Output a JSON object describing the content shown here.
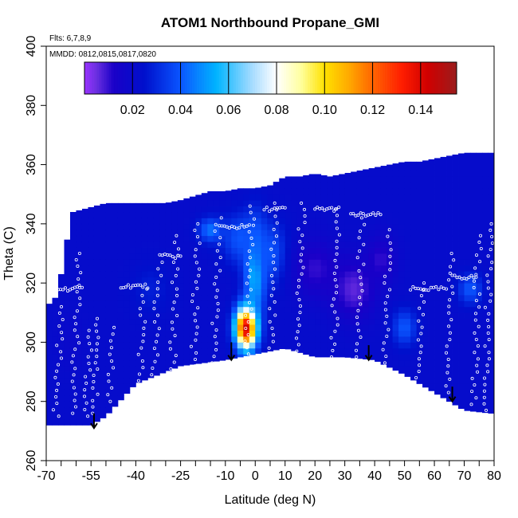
{
  "chart_data": {
    "type": "heatmap",
    "title": "ATOM1 Northbound Propane_GMI",
    "notes": {
      "flights": "Flts: 6,7,8,9",
      "dates": "MMDD: 0812,0815,0817,0820"
    },
    "xlabel": "Latitude (deg N)",
    "ylabel": "Theta (C)",
    "xlim": [
      -70,
      80
    ],
    "ylim": [
      260,
      400
    ],
    "x_ticks": [
      {
        "value": -70,
        "label": "-70"
      },
      {
        "value": -55,
        "label": "-55"
      },
      {
        "value": -40,
        "label": "-40"
      },
      {
        "value": -25,
        "label": "-25"
      },
      {
        "value": -10,
        "label": "-10"
      },
      {
        "value": 0,
        "label": "0"
      },
      {
        "value": 10,
        "label": "10"
      },
      {
        "value": 20,
        "label": "20"
      },
      {
        "value": 30,
        "label": "30"
      },
      {
        "value": 40,
        "label": "40"
      },
      {
        "value": 50,
        "label": "50"
      },
      {
        "value": 60,
        "label": "60"
      },
      {
        "value": 70,
        "label": "70"
      },
      {
        "value": 80,
        "label": "80"
      }
    ],
    "x_minor_ticks": [
      -65,
      -60,
      -50,
      -45,
      -35,
      -30,
      -20,
      -15,
      -5,
      5,
      15,
      25,
      35,
      45,
      55,
      65,
      75
    ],
    "y_ticks": [
      {
        "value": 260,
        "label": "260"
      },
      {
        "value": 280,
        "label": "280"
      },
      {
        "value": 300,
        "label": "300"
      },
      {
        "value": 320,
        "label": "320"
      },
      {
        "value": 340,
        "label": "340"
      },
      {
        "value": 360,
        "label": "360"
      },
      {
        "value": 380,
        "label": "380"
      },
      {
        "value": 400,
        "label": "400"
      }
    ],
    "colorbar": {
      "range": [
        0.0,
        0.155
      ],
      "ticks": [
        {
          "value": 0.02,
          "label": "0.02"
        },
        {
          "value": 0.04,
          "label": "0.04"
        },
        {
          "value": 0.06,
          "label": "0.06"
        },
        {
          "value": 0.08,
          "label": "0.08"
        },
        {
          "value": 0.1,
          "label": "0.10"
        },
        {
          "value": 0.12,
          "label": "0.12"
        },
        {
          "value": 0.14,
          "label": "0.14"
        }
      ],
      "divisions": [
        0.02,
        0.04,
        0.06,
        0.08,
        0.1,
        0.12,
        0.14
      ],
      "palette": [
        {
          "value": 0.0,
          "color": "#9a33ff"
        },
        {
          "value": 0.005,
          "color": "#6a2ee0"
        },
        {
          "value": 0.012,
          "color": "#1a00c8"
        },
        {
          "value": 0.025,
          "color": "#0010cc"
        },
        {
          "value": 0.04,
          "color": "#0a55ff"
        },
        {
          "value": 0.055,
          "color": "#00b4ff"
        },
        {
          "value": 0.07,
          "color": "#a8dcff"
        },
        {
          "value": 0.08,
          "color": "#ffffff"
        },
        {
          "value": 0.09,
          "color": "#ffffa0"
        },
        {
          "value": 0.1,
          "color": "#ffe100"
        },
        {
          "value": 0.11,
          "color": "#ffaa00"
        },
        {
          "value": 0.12,
          "color": "#ff6400"
        },
        {
          "value": 0.132,
          "color": "#ff1e00"
        },
        {
          "value": 0.143,
          "color": "#d00000"
        },
        {
          "value": 0.155,
          "color": "#9a1c1c"
        }
      ]
    },
    "field": {
      "domain_top": [
        [
          -70,
          312
        ],
        [
          -66,
          316
        ],
        [
          -64,
          330
        ],
        [
          -61,
          344
        ],
        [
          -50,
          347
        ],
        [
          -40,
          347
        ],
        [
          -30,
          347
        ],
        [
          -25,
          348
        ],
        [
          -15,
          351
        ],
        [
          -10,
          351
        ],
        [
          -5,
          352
        ],
        [
          0,
          352
        ],
        [
          5,
          353
        ],
        [
          10,
          356
        ],
        [
          15,
          356
        ],
        [
          20,
          357
        ],
        [
          25,
          356
        ],
        [
          30,
          357
        ],
        [
          35,
          358
        ],
        [
          40,
          359
        ],
        [
          45,
          360
        ],
        [
          50,
          361
        ],
        [
          55,
          361
        ],
        [
          60,
          362
        ],
        [
          65,
          363
        ],
        [
          70,
          364
        ],
        [
          75,
          364
        ],
        [
          79,
          364
        ]
      ],
      "domain_bottom": [
        [
          -70,
          272
        ],
        [
          -55,
          272
        ],
        [
          -50,
          275
        ],
        [
          -40,
          286
        ],
        [
          -30,
          290
        ],
        [
          -25,
          292
        ],
        [
          -10,
          294
        ],
        [
          0,
          296
        ],
        [
          10,
          298
        ],
        [
          20,
          295
        ],
        [
          30,
          295
        ],
        [
          40,
          294
        ],
        [
          50,
          289
        ],
        [
          60,
          283
        ],
        [
          70,
          277
        ],
        [
          79,
          276
        ]
      ],
      "background_value": 0.022,
      "blobs": [
        {
          "x": -3,
          "y": 305,
          "sx": 3.5,
          "sy": 7,
          "value": 0.15
        },
        {
          "x": 0,
          "y": 325,
          "sx": 3.5,
          "sy": 15,
          "value": 0.06
        },
        {
          "x": -5,
          "y": 335,
          "sx": 6,
          "sy": 8,
          "value": 0.04
        },
        {
          "x": 5,
          "y": 330,
          "sx": 6,
          "sy": 10,
          "value": 0.04
        },
        {
          "x": -15,
          "y": 338,
          "sx": 4,
          "sy": 4,
          "value": 0.045
        },
        {
          "x": 20,
          "y": 325,
          "sx": 8,
          "sy": 10,
          "value": 0.01
        },
        {
          "x": 33,
          "y": 318,
          "sx": 7,
          "sy": 10,
          "value": 0.006
        },
        {
          "x": 42,
          "y": 328,
          "sx": 5,
          "sy": 8,
          "value": 0.01
        },
        {
          "x": 50,
          "y": 305,
          "sx": 4,
          "sy": 6,
          "value": 0.04
        },
        {
          "x": 72,
          "y": 318,
          "sx": 4,
          "sy": 5,
          "value": 0.04
        },
        {
          "x": -35,
          "y": 318,
          "sx": 6,
          "sy": 8,
          "value": 0.028
        },
        {
          "x": -62,
          "y": 300,
          "sx": 5,
          "sy": 10,
          "value": 0.02
        }
      ]
    },
    "flight_profiles": [
      {
        "x": -66,
        "y0": 275,
        "y1": 312
      },
      {
        "x": -60,
        "y0": 276,
        "y1": 330
      },
      {
        "x": -56,
        "y0": 275,
        "y1": 304
      },
      {
        "x": -53,
        "y0": 276,
        "y1": 308
      },
      {
        "x": -48,
        "y0": 280,
        "y1": 305
      },
      {
        "x": -38,
        "y0": 287,
        "y1": 318
      },
      {
        "x": -33,
        "y0": 289,
        "y1": 327
      },
      {
        "x": -27,
        "y0": 291,
        "y1": 336
      },
      {
        "x": -20,
        "y0": 292,
        "y1": 340
      },
      {
        "x": -13,
        "y0": 293,
        "y1": 342
      },
      {
        "x": -2,
        "y0": 296,
        "y1": 346
      },
      {
        "x": 6,
        "y0": 298,
        "y1": 347
      },
      {
        "x": 15,
        "y0": 297,
        "y1": 347
      },
      {
        "x": 27,
        "y0": 295,
        "y1": 345
      },
      {
        "x": 35,
        "y0": 295,
        "y1": 342
      },
      {
        "x": 44,
        "y0": 293,
        "y1": 338
      },
      {
        "x": 55,
        "y0": 288,
        "y1": 320
      },
      {
        "x": 65,
        "y0": 283,
        "y1": 330
      },
      {
        "x": 74,
        "y0": 279,
        "y1": 336
      },
      {
        "x": 78,
        "y0": 277,
        "y1": 340
      }
    ],
    "flight_legs": [
      {
        "x0": -66,
        "x1": -58,
        "y": 318
      },
      {
        "x0": -45,
        "x1": -36,
        "y": 319
      },
      {
        "x0": -32,
        "x1": -25,
        "y": 329
      },
      {
        "x0": -12,
        "x1": -2,
        "y": 339
      },
      {
        "x0": 3,
        "x1": 10,
        "y": 345
      },
      {
        "x0": 20,
        "x1": 28,
        "y": 345
      },
      {
        "x0": 32,
        "x1": 42,
        "y": 343
      },
      {
        "x0": 52,
        "x1": 64,
        "y": 318
      },
      {
        "x0": 66,
        "x1": 74,
        "y": 322
      }
    ],
    "arrows": [
      {
        "x": -54,
        "y_top": 276,
        "y_tip": 271
      },
      {
        "x": -8,
        "y_top": 300,
        "y_tip": 294
      },
      {
        "x": 38,
        "y_top": 299,
        "y_tip": 294
      },
      {
        "x": 66,
        "y_top": 285,
        "y_tip": 280
      }
    ]
  }
}
